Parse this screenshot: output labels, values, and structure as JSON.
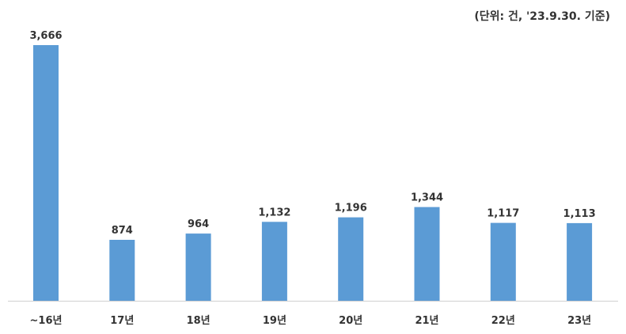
{
  "chart_data": {
    "type": "bar",
    "unit_note": "(단위: 건, '23.9.30. 기준)",
    "title": "",
    "xlabel": "",
    "ylabel": "",
    "categories": [
      "~16년",
      "17년",
      "18년",
      "19년",
      "20년",
      "21년",
      "22년",
      "23년"
    ],
    "values": [
      3666,
      874,
      964,
      1132,
      1196,
      1344,
      1117,
      1113
    ],
    "value_labels": [
      "3,666",
      "874",
      "964",
      "1,132",
      "1,196",
      "1,344",
      "1,117",
      "1,113"
    ],
    "ylim": [
      0,
      3900
    ],
    "grid": false,
    "legend": "none",
    "colors": {
      "bar": "#5b9bd5",
      "axis": "#d0d0d0",
      "label": "#333333"
    }
  }
}
